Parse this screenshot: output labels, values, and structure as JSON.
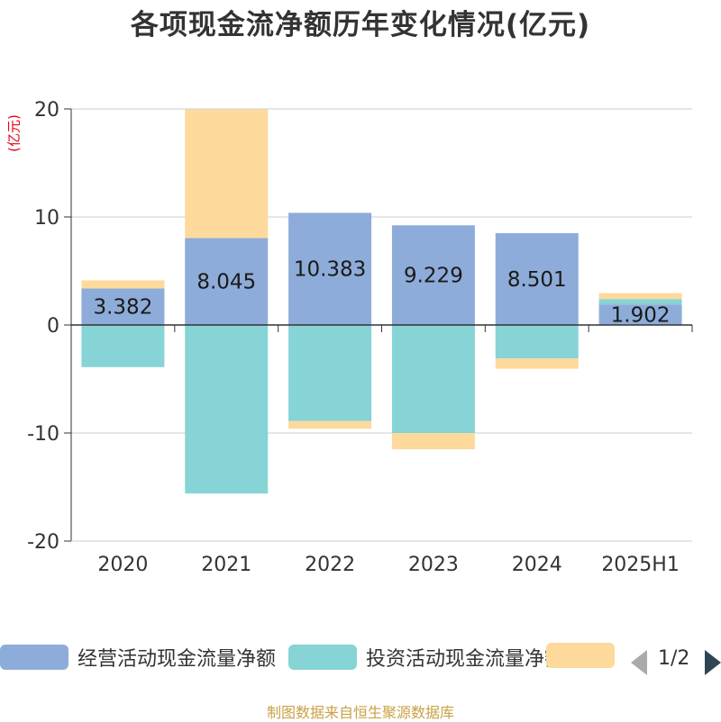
{
  "chart_data": {
    "type": "bar",
    "stacked": true,
    "title": "各项现金流净额历年变化情况(亿元)",
    "ylabel": "(亿元)",
    "ylim": [
      -20,
      20
    ],
    "yticks": [
      -20,
      -10,
      0,
      10,
      20
    ],
    "categories": [
      "2020",
      "2021",
      "2022",
      "2023",
      "2024",
      "2025H1"
    ],
    "series": [
      {
        "name": "经营活动现金流量净额",
        "color": "#8eacd9",
        "values": [
          3.382,
          8.045,
          10.383,
          9.229,
          8.501,
          1.902
        ],
        "labels": [
          "3.382",
          "8.045",
          "10.383",
          "9.229",
          "8.501",
          "1.902"
        ]
      },
      {
        "name": "投资活动现金流量净额",
        "color": "#86d4d6",
        "values": [
          -3.9,
          -15.6,
          -8.9,
          -10.0,
          -3.1,
          0.5
        ]
      },
      {
        "name": "",
        "color": "#fdd99b",
        "values": [
          0.75,
          11.9,
          -0.7,
          -1.5,
          -0.95,
          0.55
        ]
      }
    ],
    "grid": true,
    "legend_position": "bottom"
  },
  "legend": {
    "pager_text": "1/2"
  },
  "footer": "制图数据来自恒生聚源数据库"
}
